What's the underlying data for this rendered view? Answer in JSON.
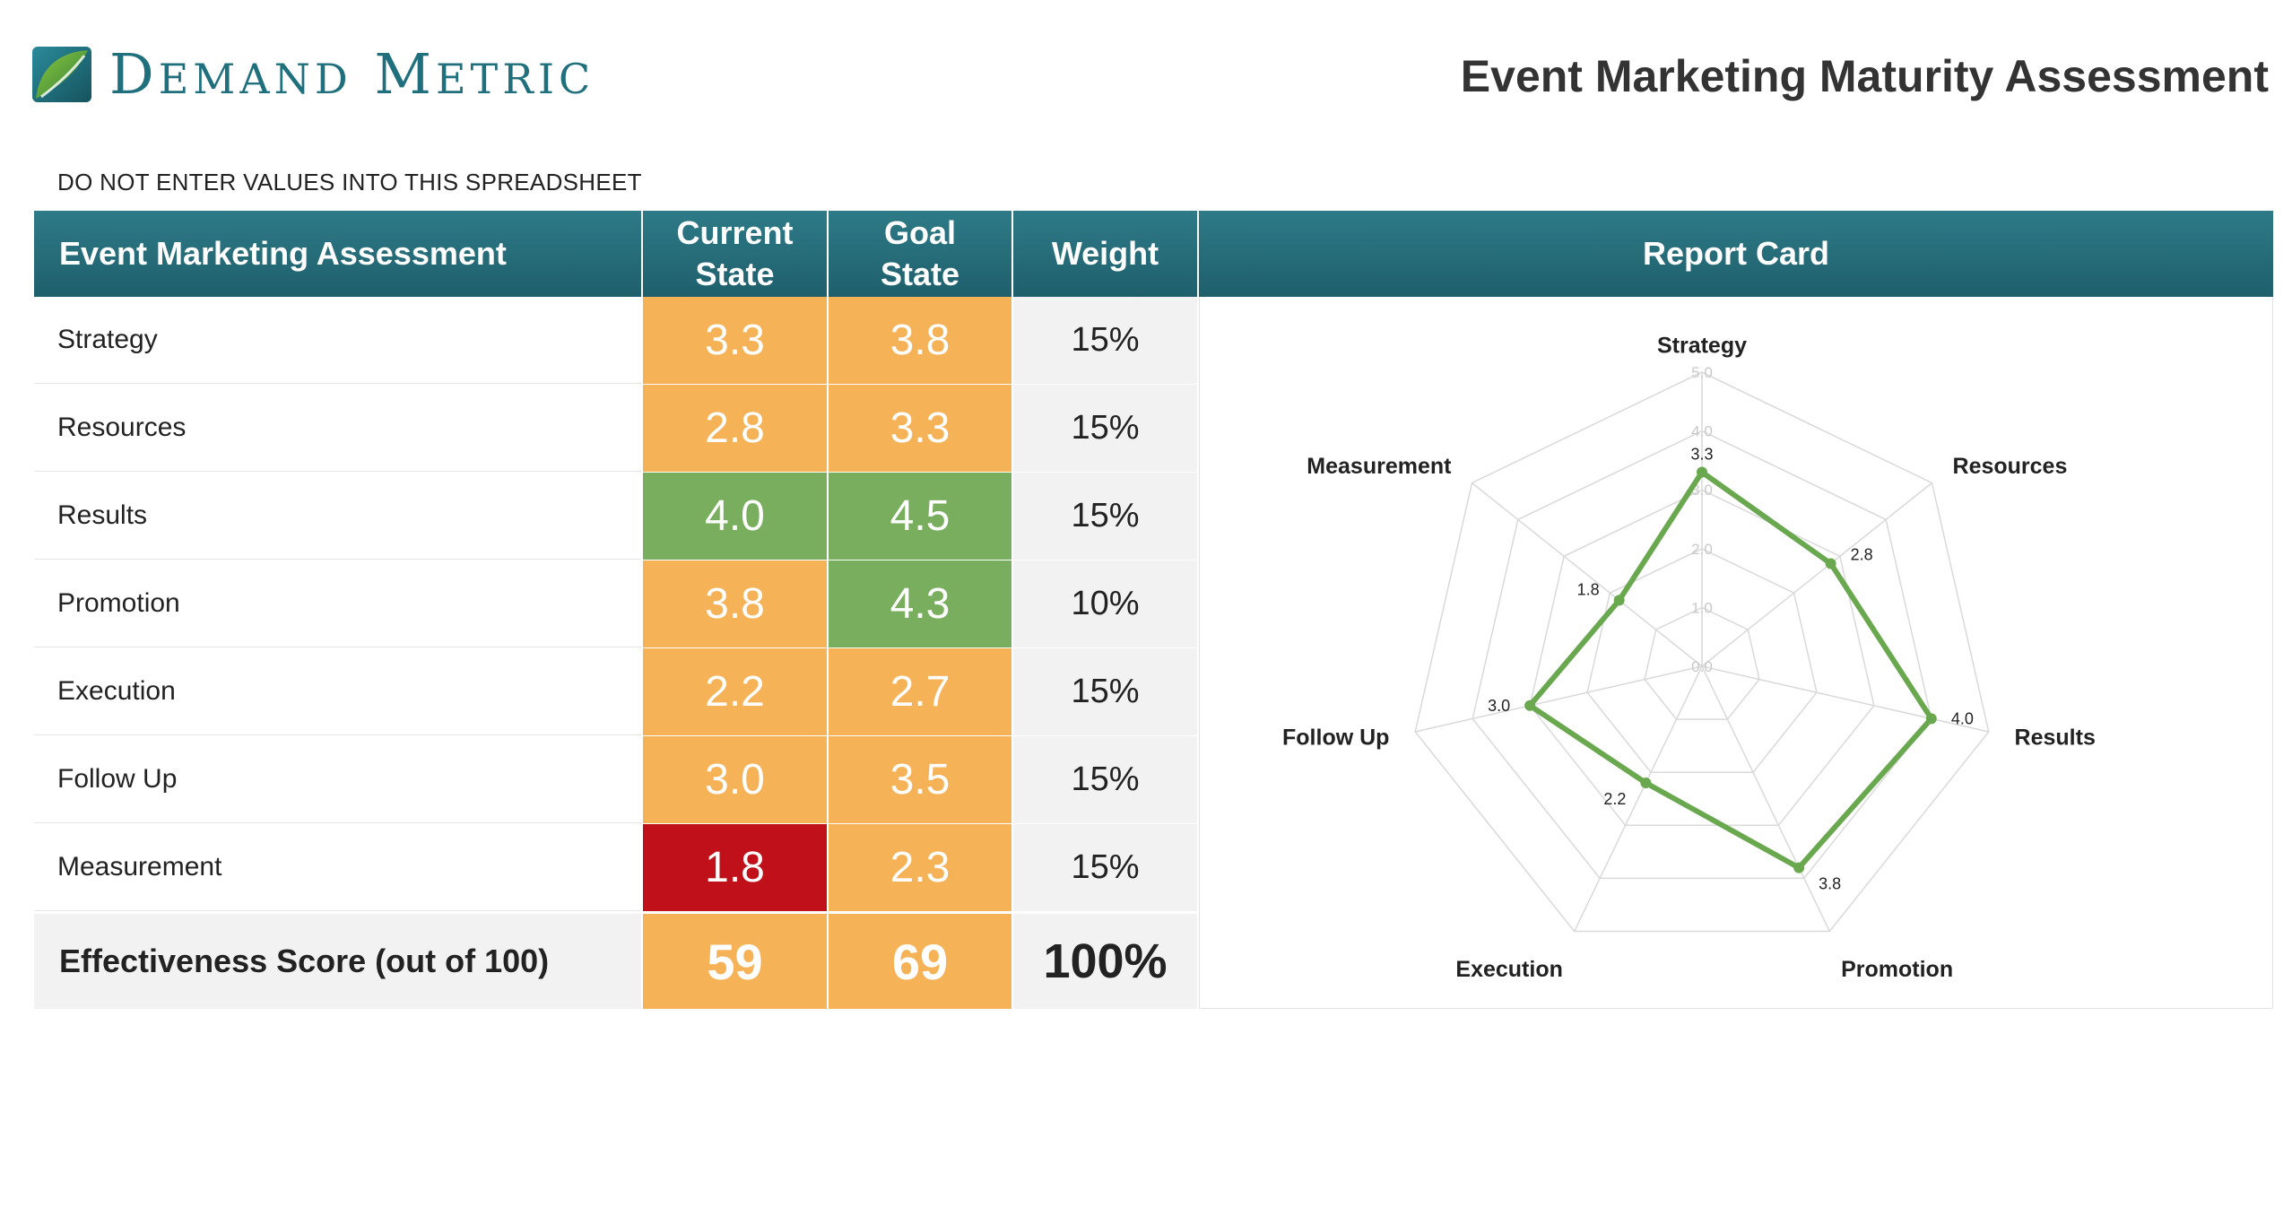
{
  "brand": {
    "name_first_cap": "D",
    "name_first_rest": "EMAND",
    "name_second_cap": "M",
    "name_second_rest": "ETRIC",
    "logo_icon": "demand-metric-leaf-logo",
    "colors": {
      "teal": "#1f6f7d",
      "green": "#6aa84f"
    }
  },
  "title": "Event Marketing Maturity Assessment",
  "notice": "DO NOT ENTER VALUES INTO THIS SPREADSHEET",
  "table": {
    "headers": {
      "assessment": "Event Marketing Assessment",
      "current_line1": "Current",
      "current_line2": "State",
      "goal_line1": "Goal",
      "goal_line2": "State",
      "weight": "Weight",
      "report": "Report Card"
    },
    "rows": [
      {
        "label": "Strategy",
        "current": "3.3",
        "goal": "3.8",
        "weight": "15%",
        "current_color": "#f5b257",
        "goal_color": "#f5b257"
      },
      {
        "label": "Resources",
        "current": "2.8",
        "goal": "3.3",
        "weight": "15%",
        "current_color": "#f5b257",
        "goal_color": "#f5b257"
      },
      {
        "label": "Results",
        "current": "4.0",
        "goal": "4.5",
        "weight": "15%",
        "current_color": "#7aae5f",
        "goal_color": "#7aae5f"
      },
      {
        "label": "Promotion",
        "current": "3.8",
        "goal": "4.3",
        "weight": "10%",
        "current_color": "#f5b257",
        "goal_color": "#7aae5f"
      },
      {
        "label": "Execution",
        "current": "2.2",
        "goal": "2.7",
        "weight": "15%",
        "current_color": "#f5b257",
        "goal_color": "#f5b257"
      },
      {
        "label": "Follow Up",
        "current": "3.0",
        "goal": "3.5",
        "weight": "15%",
        "current_color": "#f5b257",
        "goal_color": "#f5b257"
      },
      {
        "label": "Measurement",
        "current": "1.8",
        "goal": "2.3",
        "weight": "15%",
        "current_color": "#c0111a",
        "goal_color": "#f5b257"
      }
    ],
    "score": {
      "label": "Effectiveness Score (out of 100)",
      "current": "59",
      "goal": "69",
      "weight": "100%"
    }
  },
  "chart_data": {
    "type": "radar",
    "categories": [
      "Strategy",
      "Resources",
      "Results",
      "Promotion",
      "Execution",
      "Follow Up",
      "Measurement"
    ],
    "series": [
      {
        "values": [
          3.3,
          2.8,
          4.0,
          3.8,
          2.2,
          3.0,
          1.8
        ],
        "color": "#6aa84f"
      }
    ],
    "data_labels": [
      "3.3",
      "2.8",
      "4.0",
      "3.8",
      "2.2",
      "3.0",
      "1.8"
    ],
    "rlim": [
      0,
      5
    ],
    "ticks": [
      "0.0",
      "1.0",
      "2.0",
      "3.0",
      "4.0",
      "5.0"
    ],
    "tick_values": [
      0,
      1,
      2,
      3,
      4,
      5
    ],
    "grid": true,
    "legend": "none"
  }
}
